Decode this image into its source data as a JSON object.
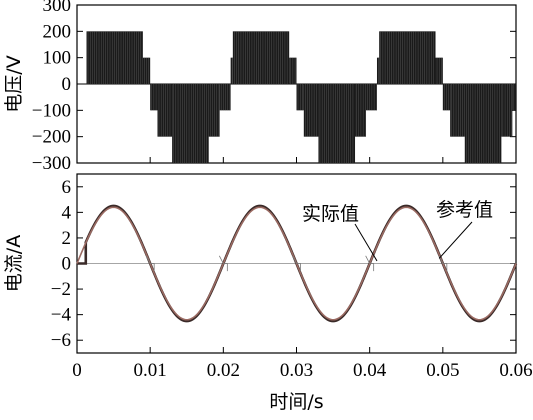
{
  "chart_data": [
    {
      "type": "line",
      "title": "",
      "xlabel": "",
      "ylabel": "电压/V",
      "xlim": [
        0,
        0.06
      ],
      "ylim": [
        -300,
        300
      ],
      "yticks": [
        300,
        200,
        100,
        0,
        -100,
        -200,
        -300
      ],
      "ytick_labels": [
        "300",
        "200",
        "100",
        "0",
        "−100",
        "−200",
        "−300"
      ],
      "grid": false,
      "series": [
        {
          "values_description_free": true,
          "levels": [
            200,
            100,
            0,
            -100,
            -200,
            -300
          ],
          "segments": [
            {
              "x": [
                0.0013,
                0.009
              ],
              "y": 200
            },
            {
              "x": [
                0.009,
                0.01
              ],
              "y": 100
            },
            {
              "x": [
                0.01,
                0.011
              ],
              "y": -100
            },
            {
              "x": [
                0.011,
                0.013
              ],
              "y": -200
            },
            {
              "x": [
                0.013,
                0.018
              ],
              "y": -300
            },
            {
              "x": [
                0.018,
                0.0195
              ],
              "y": -200
            },
            {
              "x": [
                0.0195,
                0.021
              ],
              "y": -100
            },
            {
              "x": [
                0.021,
                0.0213
              ],
              "y": 100
            },
            {
              "x": [
                0.0213,
                0.029
              ],
              "y": 200
            },
            {
              "x": [
                0.029,
                0.03
              ],
              "y": 100
            },
            {
              "x": [
                0.03,
                0.031
              ],
              "y": -100
            },
            {
              "x": [
                0.031,
                0.033
              ],
              "y": -200
            },
            {
              "x": [
                0.033,
                0.038
              ],
              "y": -300
            },
            {
              "x": [
                0.038,
                0.0395
              ],
              "y": -200
            },
            {
              "x": [
                0.0395,
                0.041
              ],
              "y": -100
            },
            {
              "x": [
                0.041,
                0.0413
              ],
              "y": 100
            },
            {
              "x": [
                0.0413,
                0.049
              ],
              "y": 200
            },
            {
              "x": [
                0.049,
                0.05
              ],
              "y": 100
            },
            {
              "x": [
                0.05,
                0.051
              ],
              "y": -100
            },
            {
              "x": [
                0.051,
                0.053
              ],
              "y": -200
            },
            {
              "x": [
                0.053,
                0.058
              ],
              "y": -300
            },
            {
              "x": [
                0.058,
                0.0595
              ],
              "y": -200
            },
            {
              "x": [
                0.0595,
                0.06
              ],
              "y": -100
            }
          ]
        }
      ]
    },
    {
      "type": "line",
      "title": "",
      "xlabel": "时间/s",
      "ylabel": "电流/A",
      "xlim": [
        0,
        0.06
      ],
      "ylim": [
        -7,
        7
      ],
      "xticks": [
        0,
        0.01,
        0.02,
        0.03,
        0.04,
        0.05,
        0.06
      ],
      "xtick_labels": [
        "0",
        "0.01",
        "0.02",
        "0.03",
        "0.04",
        "0.05",
        "0.06"
      ],
      "yticks": [
        6,
        4,
        2,
        0,
        -2,
        -4,
        -6
      ],
      "ytick_labels": [
        "6",
        "4",
        "2",
        "0",
        "−2",
        "−4",
        "−6"
      ],
      "grid": false,
      "series": [
        {
          "name": "实际值",
          "amplitude": 4.5,
          "frequency_hz": 50,
          "color": "#3a2a28"
        },
        {
          "name": "参考值",
          "amplitude": 4.4,
          "frequency_hz": 50,
          "color": "#9a6a62"
        }
      ],
      "annotations": [
        {
          "text": "实际值",
          "points_to": [
            0.041,
            0.2
          ]
        },
        {
          "text": "参考值",
          "points_to": [
            0.0495,
            0.4
          ]
        }
      ]
    }
  ]
}
